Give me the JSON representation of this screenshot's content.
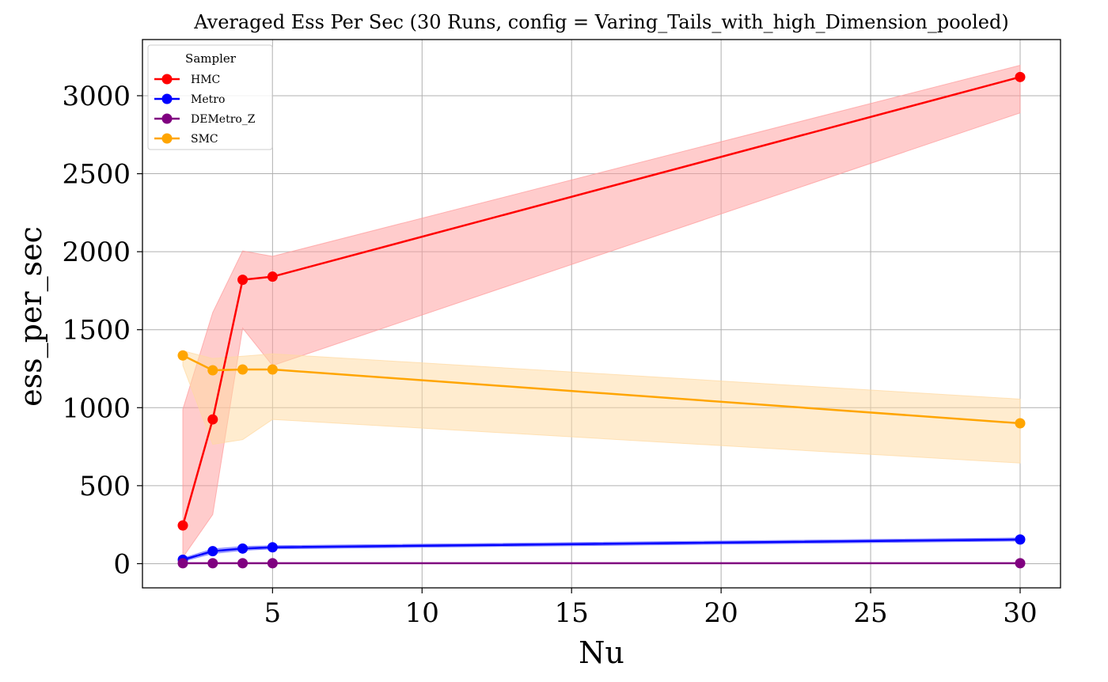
{
  "chart_data": {
    "type": "line",
    "title": "Averaged Ess Per Sec (30 Runs, config = Varing_Tails_with_high_Dimension_pooled)",
    "xlabel": "Nu",
    "ylabel": "ess_per_sec",
    "xlim": [
      0.65,
      31.35
    ],
    "ylim": [
      -155,
      3360
    ],
    "xticks": [
      5,
      10,
      15,
      20,
      25,
      30
    ],
    "yticks": [
      0,
      500,
      1000,
      1500,
      2000,
      2500,
      3000
    ],
    "grid": true,
    "legend_title": "Sampler",
    "legend_position": "top-left",
    "x": [
      2,
      3,
      4,
      5,
      30
    ],
    "series": [
      {
        "name": "HMC",
        "color": "#ff0000",
        "band_color": "#ff9999",
        "values": [
          245,
          925,
          1820,
          1840,
          3120
        ],
        "lower": [
          40,
          315,
          1510,
          1270,
          2890
        ],
        "upper": [
          990,
          1610,
          2005,
          1970,
          3195
        ]
      },
      {
        "name": "Metro",
        "color": "#0000ff",
        "band_color": "#6666ff",
        "values": [
          25,
          80,
          97,
          105,
          155
        ],
        "lower": [
          15,
          65,
          85,
          95,
          145
        ],
        "upper": [
          35,
          95,
          110,
          115,
          165
        ]
      },
      {
        "name": "DEMetro_Z",
        "color": "#800080",
        "band_color": "#c080c0",
        "values": [
          3,
          3,
          3,
          3,
          3
        ],
        "lower": [
          1,
          1,
          1,
          1,
          1
        ],
        "upper": [
          5,
          5,
          5,
          5,
          5
        ]
      },
      {
        "name": "SMC",
        "color": "#ffa500",
        "band_color": "#ffd9a0",
        "values": [
          1335,
          1240,
          1245,
          1245,
          900
        ],
        "lower": [
          1270,
          765,
          795,
          925,
          645
        ],
        "upper": [
          1365,
          1315,
          1330,
          1345,
          1055
        ]
      }
    ]
  }
}
